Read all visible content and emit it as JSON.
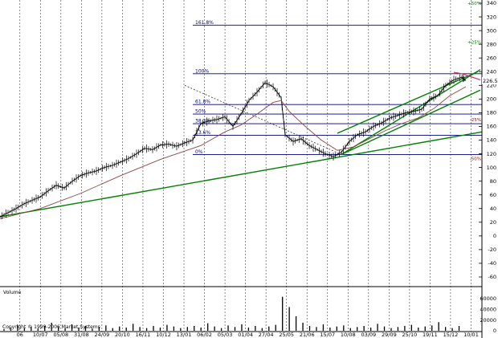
{
  "chart_data": {
    "type": "line",
    "title": "",
    "xlabel": "",
    "ylabel": "",
    "ylim": [
      -60,
      340
    ],
    "y_ticks": [
      340,
      320,
      300,
      280,
      260,
      240,
      220,
      200,
      180,
      160,
      140,
      120,
      100,
      80,
      60,
      40,
      20,
      0,
      -20,
      -40,
      -60
    ],
    "x_ticks": [
      "06",
      "10/07",
      "05/08",
      "31/08",
      "24/09",
      "20/10",
      "16/11",
      "10/12",
      "13/01",
      "06/02",
      "05/03",
      "01/04",
      "27/04",
      "25/05",
      "21/06",
      "15/07",
      "10/08",
      "03/09",
      "29/09",
      "25/10",
      "19/11",
      "15/12",
      "10/01"
    ],
    "grid": true,
    "last_price_label": "226.58",
    "fibonacci_levels": [
      {
        "label": "161.8%",
        "value": 308
      },
      {
        "label": "100%",
        "value": 237
      },
      {
        "label": "61.8%",
        "value": 192
      },
      {
        "label": "50%",
        "value": 178
      },
      {
        "label": "38.2%",
        "value": 164
      },
      {
        "label": "23.6%",
        "value": 147
      },
      {
        "label": "0%",
        "value": 119
      }
    ],
    "percent_labels": [
      {
        "label": "+50%",
        "value": 340
      },
      {
        "label": "+25%",
        "value": 283
      },
      {
        "label": "-25%",
        "value": 170
      },
      {
        "label": "-50%",
        "value": 113
      }
    ],
    "series": [
      {
        "values": [
          [
            0,
            28
          ],
          [
            10,
            34
          ],
          [
            20,
            40
          ],
          [
            30,
            47
          ],
          [
            40,
            52
          ],
          [
            50,
            57
          ],
          [
            60,
            66
          ],
          [
            70,
            74
          ],
          [
            80,
            70
          ],
          [
            90,
            80
          ],
          [
            100,
            88
          ],
          [
            110,
            92
          ],
          [
            120,
            95
          ],
          [
            130,
            100
          ],
          [
            140,
            103
          ],
          [
            150,
            108
          ],
          [
            160,
            113
          ],
          [
            170,
            120
          ],
          [
            180,
            128
          ],
          [
            190,
            126
          ],
          [
            200,
            133
          ],
          [
            210,
            134
          ],
          [
            220,
            131
          ],
          [
            230,
            136
          ],
          [
            240,
            140
          ],
          [
            250,
            164
          ],
          [
            260,
            168
          ],
          [
            270,
            170
          ],
          [
            280,
            174
          ],
          [
            290,
            160
          ],
          [
            300,
            178
          ],
          [
            310,
            198
          ],
          [
            320,
            210
          ],
          [
            330,
            224
          ],
          [
            340,
            218
          ],
          [
            350,
            202
          ],
          [
            355,
            148
          ],
          [
            365,
            138
          ],
          [
            375,
            142
          ],
          [
            385,
            132
          ],
          [
            395,
            126
          ],
          [
            405,
            120
          ],
          [
            415,
            116
          ],
          [
            425,
            122
          ],
          [
            435,
            138
          ],
          [
            445,
            148
          ],
          [
            455,
            152
          ],
          [
            465,
            160
          ],
          [
            475,
            165
          ],
          [
            485,
            172
          ],
          [
            495,
            176
          ],
          [
            505,
            180
          ],
          [
            515,
            182
          ],
          [
            525,
            185
          ],
          [
            535,
            200
          ],
          [
            545,
            205
          ],
          [
            555,
            220
          ],
          [
            565,
            228
          ],
          [
            575,
            232
          ],
          [
            580,
            227
          ]
        ]
      },
      {
        "values": [
          [
            0,
            25
          ],
          [
            50,
            40
          ],
          [
            100,
            62
          ],
          [
            150,
            88
          ],
          [
            200,
            112
          ],
          [
            250,
            132
          ],
          [
            280,
            152
          ],
          [
            300,
            162
          ],
          [
            320,
            178
          ],
          [
            340,
            195
          ],
          [
            350,
            198
          ],
          [
            360,
            182
          ],
          [
            380,
            160
          ],
          [
            400,
            140
          ],
          [
            420,
            125
          ],
          [
            440,
            130
          ],
          [
            460,
            142
          ],
          [
            480,
            154
          ],
          [
            500,
            164
          ],
          [
            520,
            172
          ],
          [
            540,
            186
          ],
          [
            560,
            205
          ],
          [
            580,
            218
          ]
        ]
      }
    ],
    "trendlines": [
      {
        "from": [
          0,
          28
        ],
        "to": [
          600,
          152
        ]
      },
      {
        "from": [
          425,
          119
        ],
        "to": [
          598,
          243
        ]
      },
      {
        "from": [
          425,
          119
        ],
        "to": [
          598,
          213
        ]
      },
      {
        "from": [
          420,
          150
        ],
        "to": [
          595,
          240
        ]
      }
    ],
    "volume": {
      "title": "Volume",
      "y_ticks": [
        60000,
        40000,
        20000,
        0
      ],
      "ylim": [
        0,
        70000
      ],
      "values": [
        3000,
        6000,
        11000,
        5000,
        8000,
        4000,
        9000,
        15000,
        7000,
        5000,
        12000,
        6000,
        9000,
        4000,
        7000,
        10000,
        5000,
        8000,
        6000,
        13000,
        7000,
        5000,
        9000,
        6000,
        11000,
        8000,
        5000,
        7000,
        9000,
        6000,
        14000,
        8000,
        5000,
        10000,
        7000,
        12000,
        6000,
        9000,
        5000,
        8000,
        11000,
        63000,
        44000,
        27000,
        15000,
        9000,
        7000,
        12000,
        6000,
        8000,
        10000,
        5000,
        7000,
        9000,
        6000,
        13000,
        8000,
        5000,
        7000,
        9000,
        11000,
        6000,
        8000,
        10000,
        16000,
        7000,
        5000,
        9000
      ]
    },
    "copyright": "Copyright © 1999-2006 Market Systems"
  }
}
